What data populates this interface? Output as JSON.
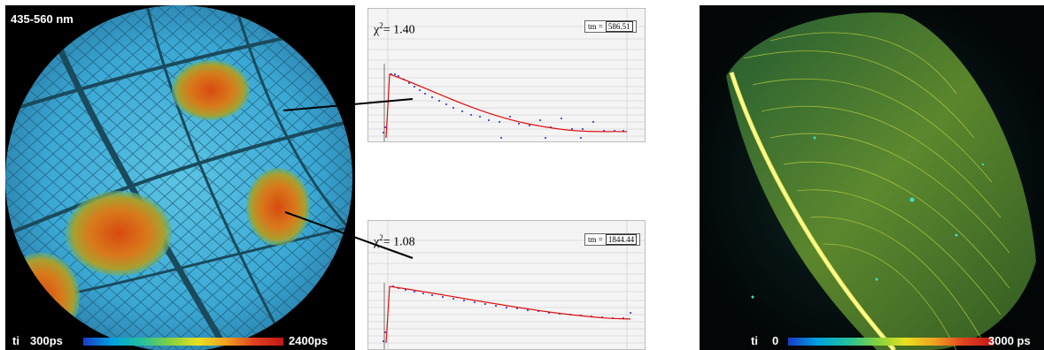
{
  "leaf_panel": {
    "wavelength_label": "435-560 nm",
    "scale_label": "ti",
    "scale_min": "300ps",
    "scale_max": "2400ps"
  },
  "plot_top": {
    "chi_symbol": "χ",
    "chi_sup": "2",
    "chi_value": "= 1.40",
    "tau_label": "tm =",
    "tau_value": "586.51"
  },
  "plot_bottom": {
    "chi_symbol": "χ",
    "chi_sup": "2",
    "chi_value": "= 1.08",
    "tau_label": "tm =",
    "tau_value": "1844.44"
  },
  "feather_panel": {
    "scale_label": "ti",
    "scale_min": "0",
    "scale_max": "3000 ps"
  },
  "colors": {
    "leaf_base": "#3ab0d8",
    "hot_spot": "#e05a18",
    "feather": "#c8e040",
    "fit_line": "#e01010",
    "data_points": "#2020e0"
  }
}
